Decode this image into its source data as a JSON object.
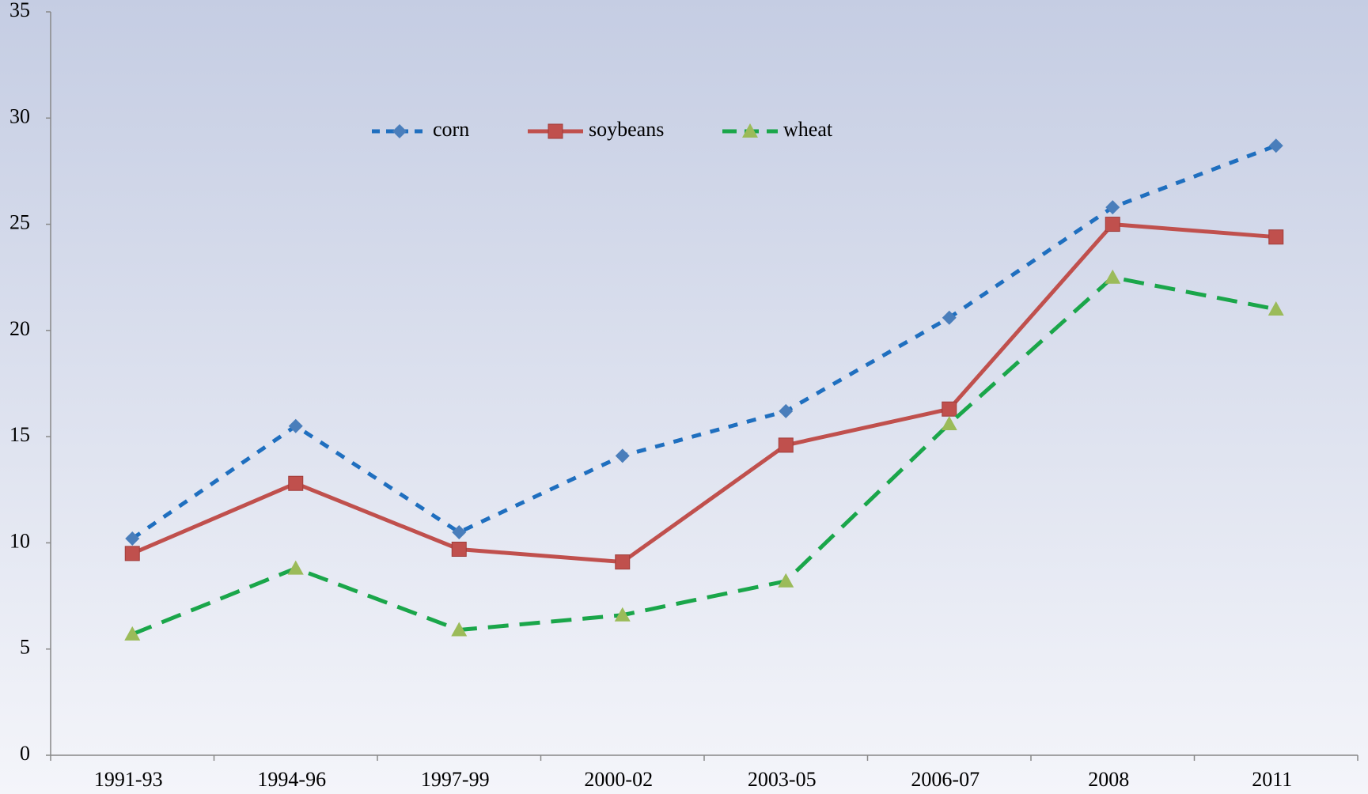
{
  "chart_data": {
    "type": "line",
    "categories": [
      "1991-93",
      "1994-96",
      "1997-99",
      "2000-02",
      "2003-05",
      "2006-07",
      "2008",
      "2011"
    ],
    "series": [
      {
        "name": "corn",
        "color": "#1f6fbf",
        "marker_color": "#4a7ebb",
        "marker": "diamond",
        "dash": "12 12",
        "values": [
          10.2,
          15.5,
          10.5,
          14.1,
          16.2,
          20.6,
          25.8,
          28.7
        ]
      },
      {
        "name": "soybeans",
        "color": "#c0504d",
        "marker_color": "#c0504d",
        "marker": "square",
        "dash": "none",
        "values": [
          9.5,
          12.8,
          9.7,
          9.1,
          14.6,
          16.3,
          25.0,
          24.4
        ]
      },
      {
        "name": "wheat",
        "color": "#1aa64a",
        "marker_color": "#9bbb59",
        "marker": "triangle",
        "dash": "26 14",
        "values": [
          5.7,
          8.8,
          5.9,
          6.6,
          8.2,
          15.6,
          22.5,
          21.0
        ]
      }
    ],
    "ylim": [
      0,
      35
    ],
    "yticks": [
      0,
      5,
      10,
      15,
      20,
      25,
      30,
      35
    ],
    "legend": "top"
  }
}
